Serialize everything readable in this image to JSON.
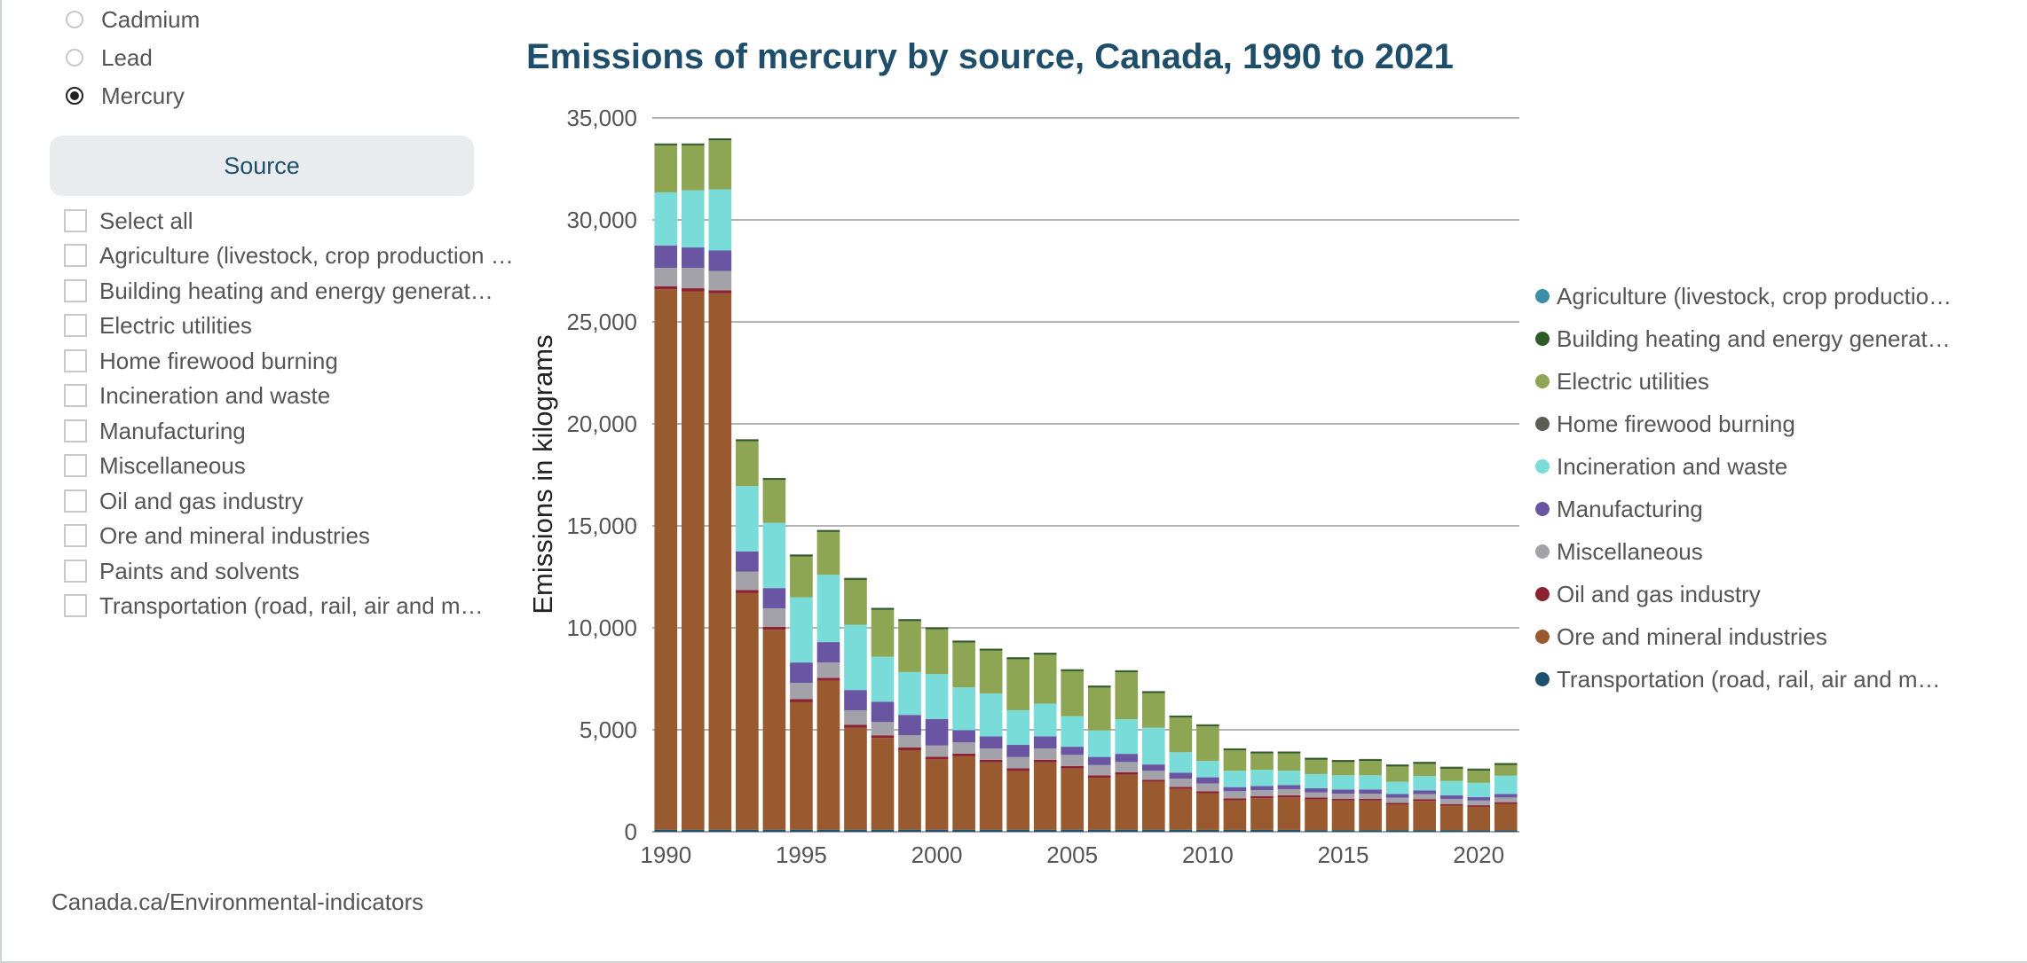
{
  "pollutant_options": [
    {
      "label": "Cadmium",
      "selected": false
    },
    {
      "label": "Lead",
      "selected": false
    },
    {
      "label": "Mercury",
      "selected": true
    }
  ],
  "source_button_label": "Source",
  "source_filters": [
    {
      "label": "Select all",
      "checked": false
    },
    {
      "label": "Agriculture (livestock, crop production and fertilizer)",
      "checked": false
    },
    {
      "label": "Building heating and energy generation",
      "checked": false
    },
    {
      "label": "Electric utilities",
      "checked": false
    },
    {
      "label": "Home firewood burning",
      "checked": false
    },
    {
      "label": "Incineration and waste",
      "checked": false
    },
    {
      "label": "Manufacturing",
      "checked": false
    },
    {
      "label": "Miscellaneous",
      "checked": false
    },
    {
      "label": "Oil and gas industry",
      "checked": false
    },
    {
      "label": "Ore and mineral industries",
      "checked": false
    },
    {
      "label": "Paints and solvents",
      "checked": false
    },
    {
      "label": "Transportation (road, rail, air and marine)",
      "checked": false
    }
  ],
  "footer_text": "Canada.ca/Environmental-indicators",
  "chart_data": {
    "type": "bar",
    "stacked": true,
    "title": "Emissions of mercury by source, Canada, 1990 to 2021",
    "xlabel": "",
    "ylabel": "Emissions in kilograms",
    "ylim": [
      0,
      35000
    ],
    "yticks": [
      0,
      5000,
      10000,
      15000,
      20000,
      25000,
      30000,
      35000
    ],
    "ytick_labels": [
      "0",
      "5,000",
      "10,000",
      "15,000",
      "20,000",
      "25,000",
      "30,000",
      "35,000"
    ],
    "xtick_labels": [
      "1990",
      "1995",
      "2000",
      "2005",
      "2010",
      "2015",
      "2020"
    ],
    "grid": true,
    "legend_position": "right",
    "categories": [
      1990,
      1991,
      1992,
      1993,
      1994,
      1995,
      1996,
      1997,
      1998,
      1999,
      2000,
      2001,
      2002,
      2003,
      2004,
      2005,
      2006,
      2007,
      2008,
      2009,
      2010,
      2011,
      2012,
      2013,
      2014,
      2015,
      2016,
      2017,
      2018,
      2019,
      2020,
      2021
    ],
    "series": [
      {
        "name": "Transportation (road, rail, air and marine)",
        "color": "#1d4f6e",
        "values": [
          100,
          100,
          100,
          100,
          100,
          100,
          100,
          100,
          100,
          100,
          100,
          100,
          100,
          100,
          100,
          100,
          100,
          100,
          100,
          100,
          90,
          90,
          90,
          90,
          80,
          80,
          80,
          80,
          80,
          80,
          70,
          70
        ]
      },
      {
        "name": "Ore and mineral industries",
        "color": "#9a5a30",
        "values": [
          26500,
          26400,
          26300,
          11600,
          9800,
          6250,
          7300,
          5000,
          4500,
          3900,
          3450,
          3600,
          3300,
          2880,
          3300,
          3000,
          2550,
          2700,
          2350,
          2000,
          1800,
          1450,
          1550,
          1600,
          1500,
          1450,
          1450,
          1250,
          1430,
          1200,
          1150,
          1300
        ]
      },
      {
        "name": "Oil and gas industry",
        "color": "#8b2332",
        "values": [
          150,
          150,
          150,
          150,
          150,
          150,
          150,
          150,
          130,
          130,
          130,
          130,
          130,
          130,
          130,
          120,
          120,
          120,
          100,
          100,
          100,
          100,
          100,
          100,
          100,
          90,
          90,
          90,
          90,
          80,
          80,
          80
        ]
      },
      {
        "name": "Miscellaneous",
        "color": "#a3a2a9",
        "values": [
          900,
          1000,
          950,
          900,
          900,
          800,
          750,
          700,
          650,
          600,
          550,
          550,
          550,
          550,
          550,
          550,
          500,
          500,
          450,
          400,
          380,
          350,
          300,
          300,
          250,
          250,
          250,
          250,
          250,
          250,
          230,
          230
        ]
      },
      {
        "name": "Manufacturing",
        "color": "#6a55a3",
        "values": [
          1100,
          1000,
          1000,
          1000,
          1000,
          1000,
          1000,
          1000,
          1000,
          1000,
          1300,
          600,
          600,
          600,
          600,
          400,
          400,
          400,
          300,
          300,
          300,
          200,
          200,
          200,
          200,
          200,
          200,
          180,
          180,
          180,
          170,
          170
        ]
      },
      {
        "name": "Incineration and waste",
        "color": "#79dcd8",
        "values": [
          2600,
          2800,
          3000,
          3200,
          3200,
          3200,
          3300,
          3200,
          2200,
          2100,
          2200,
          2100,
          2100,
          1700,
          1600,
          1500,
          1300,
          1700,
          1800,
          1000,
          800,
          800,
          800,
          700,
          700,
          700,
          700,
          600,
          700,
          700,
          700,
          900
        ]
      },
      {
        "name": "Electric utilities",
        "color": "#8ea554",
        "values": [
          2300,
          2200,
          2400,
          2200,
          2100,
          2000,
          2100,
          2200,
          2300,
          2500,
          2200,
          2200,
          2100,
          2500,
          2400,
          2200,
          2100,
          2300,
          1700,
          1700,
          1700,
          1000,
          800,
          850,
          700,
          650,
          700,
          750,
          600,
          600,
          600,
          520
        ]
      },
      {
        "name": "Building heating and energy generation",
        "color": "#2d5a27",
        "values": [
          80,
          80,
          80,
          80,
          80,
          80,
          80,
          80,
          80,
          80,
          80,
          80,
          80,
          80,
          80,
          80,
          80,
          80,
          80,
          80,
          80,
          80,
          80,
          80,
          80,
          80,
          80,
          80,
          80,
          80,
          80,
          80
        ]
      },
      {
        "name": "Home firewood burning",
        "color": "#5c5c52",
        "values": [
          20,
          20,
          20,
          20,
          20,
          20,
          20,
          20,
          20,
          20,
          20,
          20,
          20,
          20,
          20,
          20,
          20,
          20,
          20,
          20,
          20,
          20,
          20,
          20,
          20,
          20,
          20,
          20,
          20,
          20,
          20,
          20
        ]
      },
      {
        "name": "Agriculture (livestock, crop production and fertilizer)",
        "color": "#3b8fa6",
        "values": [
          0,
          0,
          0,
          0,
          0,
          0,
          0,
          0,
          0,
          0,
          0,
          0,
          0,
          0,
          0,
          0,
          0,
          0,
          0,
          0,
          0,
          0,
          0,
          0,
          0,
          0,
          0,
          0,
          0,
          0,
          0,
          0
        ]
      }
    ],
    "legend": [
      {
        "label": "Agriculture (livestock, crop production and fertilizer)",
        "color": "#3b8fa6"
      },
      {
        "label": "Building heating and energy generation",
        "color": "#2d5a27"
      },
      {
        "label": "Electric utilities",
        "color": "#8ea554"
      },
      {
        "label": "Home firewood burning",
        "color": "#5c5c52"
      },
      {
        "label": "Incineration and waste",
        "color": "#79dcd8"
      },
      {
        "label": "Manufacturing",
        "color": "#6a55a3"
      },
      {
        "label": "Miscellaneous",
        "color": "#a3a2a9"
      },
      {
        "label": "Oil and gas industry",
        "color": "#8b2332"
      },
      {
        "label": "Ore and mineral industries",
        "color": "#9a5a30"
      },
      {
        "label": "Transportation (road, rail, air and marine)",
        "color": "#1d4f6e"
      }
    ]
  }
}
